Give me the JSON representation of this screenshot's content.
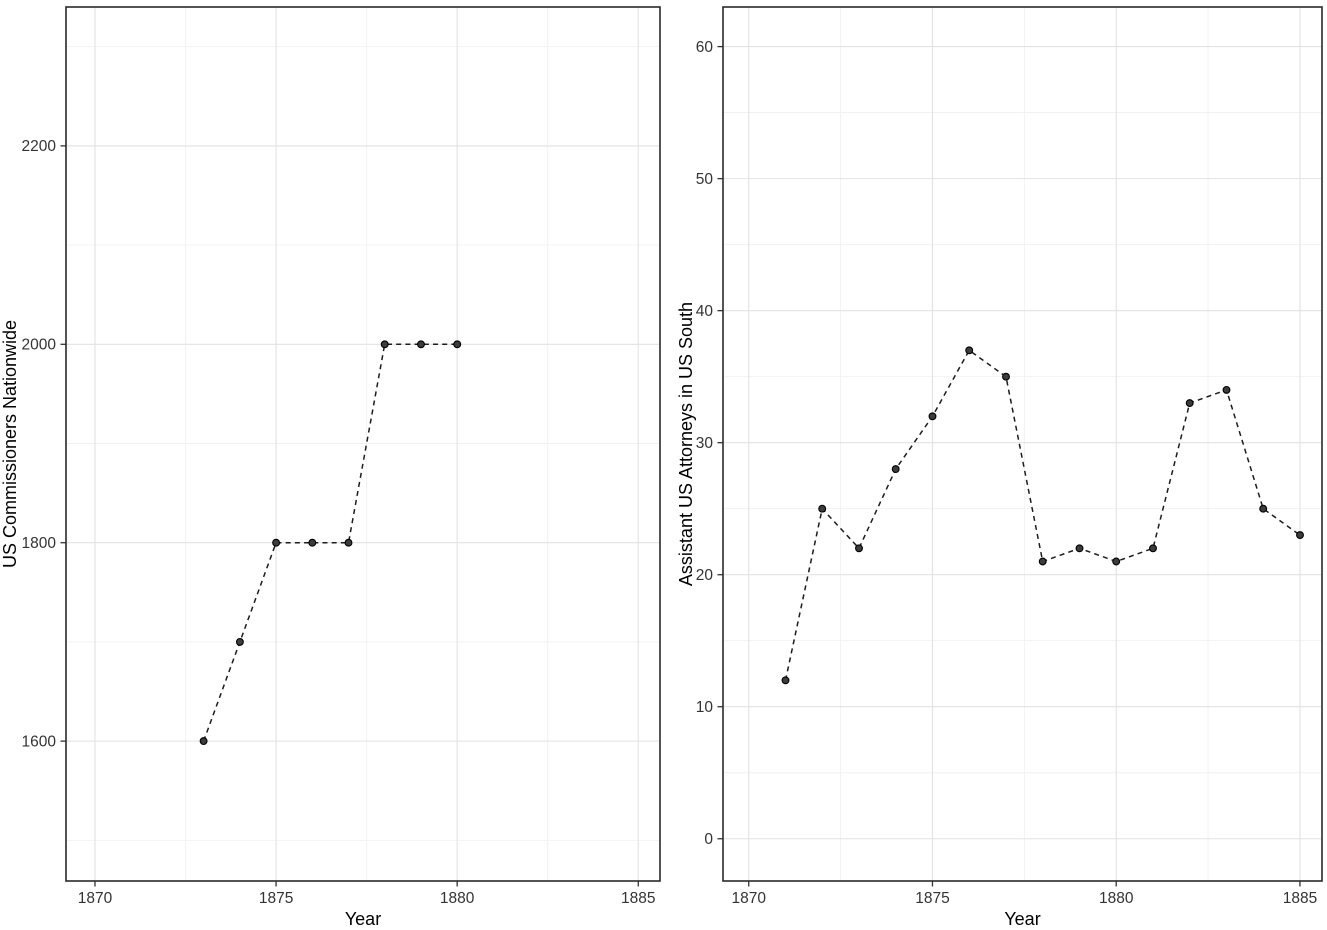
{
  "figure": {
    "background": "#ffffff",
    "description": "Two-panel dashed line chart figure"
  },
  "colors": {
    "background": "#ffffff",
    "panel_background": "#ffffff",
    "panel_border": "#2a2a2a",
    "grid_major": "#e2e2e2",
    "grid_minor": "#f1f1f1",
    "tick_mark": "#333333",
    "tick_label": "#333333",
    "axis_title": "#000000",
    "line": "#1c1c1c",
    "point_fill": "#3c3c3c",
    "point_stroke": "#000000"
  },
  "chart_data": [
    {
      "type": "line",
      "title": "",
      "xlabel": "Year",
      "ylabel": "US Commissioners Nationwide",
      "x": [
        1873,
        1874,
        1875,
        1876,
        1877,
        1878,
        1879,
        1880
      ],
      "values": [
        1600,
        1700,
        1800,
        1800,
        1800,
        2000,
        2000,
        2000
      ],
      "x_ticks": [
        1870,
        1875,
        1880,
        1885
      ],
      "y_ticks": [
        1600,
        1800,
        2000,
        2200
      ],
      "x_minor_ticks": [
        1872.5,
        1877.5,
        1882.5
      ],
      "y_minor_ticks": [
        1500,
        1700,
        1900,
        2100,
        2300
      ],
      "xlim": [
        1869.2,
        1885.6
      ],
      "ylim": [
        1459,
        2340
      ],
      "line_style": "dashed",
      "marker": "filled-circle",
      "grid": "on",
      "legend": "none"
    },
    {
      "type": "line",
      "title": "",
      "xlabel": "Year",
      "ylabel": "Assistant US Attorneys in US South",
      "x": [
        1871,
        1872,
        1873,
        1874,
        1875,
        1876,
        1877,
        1878,
        1879,
        1880,
        1881,
        1882,
        1883,
        1884,
        1885
      ],
      "values": [
        12,
        25,
        22,
        28,
        32,
        37,
        35,
        21,
        22,
        21,
        22,
        33,
        34,
        25,
        23
      ],
      "x_ticks": [
        1870,
        1875,
        1880,
        1885
      ],
      "y_ticks": [
        0,
        10,
        20,
        30,
        40,
        50,
        60
      ],
      "x_minor_ticks": [
        1872.5,
        1877.5,
        1882.5
      ],
      "y_minor_ticks": [
        5,
        15,
        25,
        35,
        45,
        55
      ],
      "xlim": [
        1869.3,
        1885.6
      ],
      "ylim": [
        -3.2,
        63
      ],
      "line_style": "dashed",
      "marker": "filled-circle",
      "grid": "on",
      "legend": "none"
    }
  ]
}
